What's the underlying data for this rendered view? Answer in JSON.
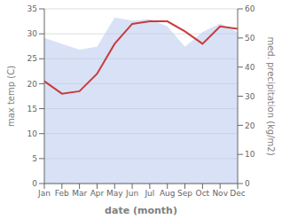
{
  "chart_data": {
    "type": "line",
    "categories": [
      "Jan",
      "Feb",
      "Mar",
      "Apr",
      "May",
      "Jun",
      "Jul",
      "Aug",
      "Sep",
      "Oct",
      "Nov",
      "Dec"
    ],
    "xlabel": "date (month)",
    "ylabel": "max temp (C)",
    "y2label": "med. precipitation (kg/m2)",
    "series": [
      {
        "type": "area",
        "axis": "y2",
        "color": "#b8c8ee",
        "values": [
          50.0,
          48.0,
          46.0,
          47.0,
          57.0,
          56.0,
          56.5,
          54.0,
          47.0,
          52.0,
          55.0,
          52.0
        ]
      },
      {
        "type": "line",
        "color": "#c93b3b",
        "values": [
          20.5,
          18.0,
          18.5,
          22.0,
          28.0,
          32.0,
          32.5,
          32.5,
          30.5,
          28.0,
          31.5,
          31.0
        ]
      }
    ],
    "ylim": [
      0,
      35
    ],
    "yticks": [
      0,
      5,
      10,
      15,
      20,
      25,
      30,
      35
    ],
    "y2lim": [
      0,
      60
    ],
    "y2ticks": [
      0,
      10,
      20,
      30,
      40,
      50,
      60
    ],
    "grid": true
  }
}
